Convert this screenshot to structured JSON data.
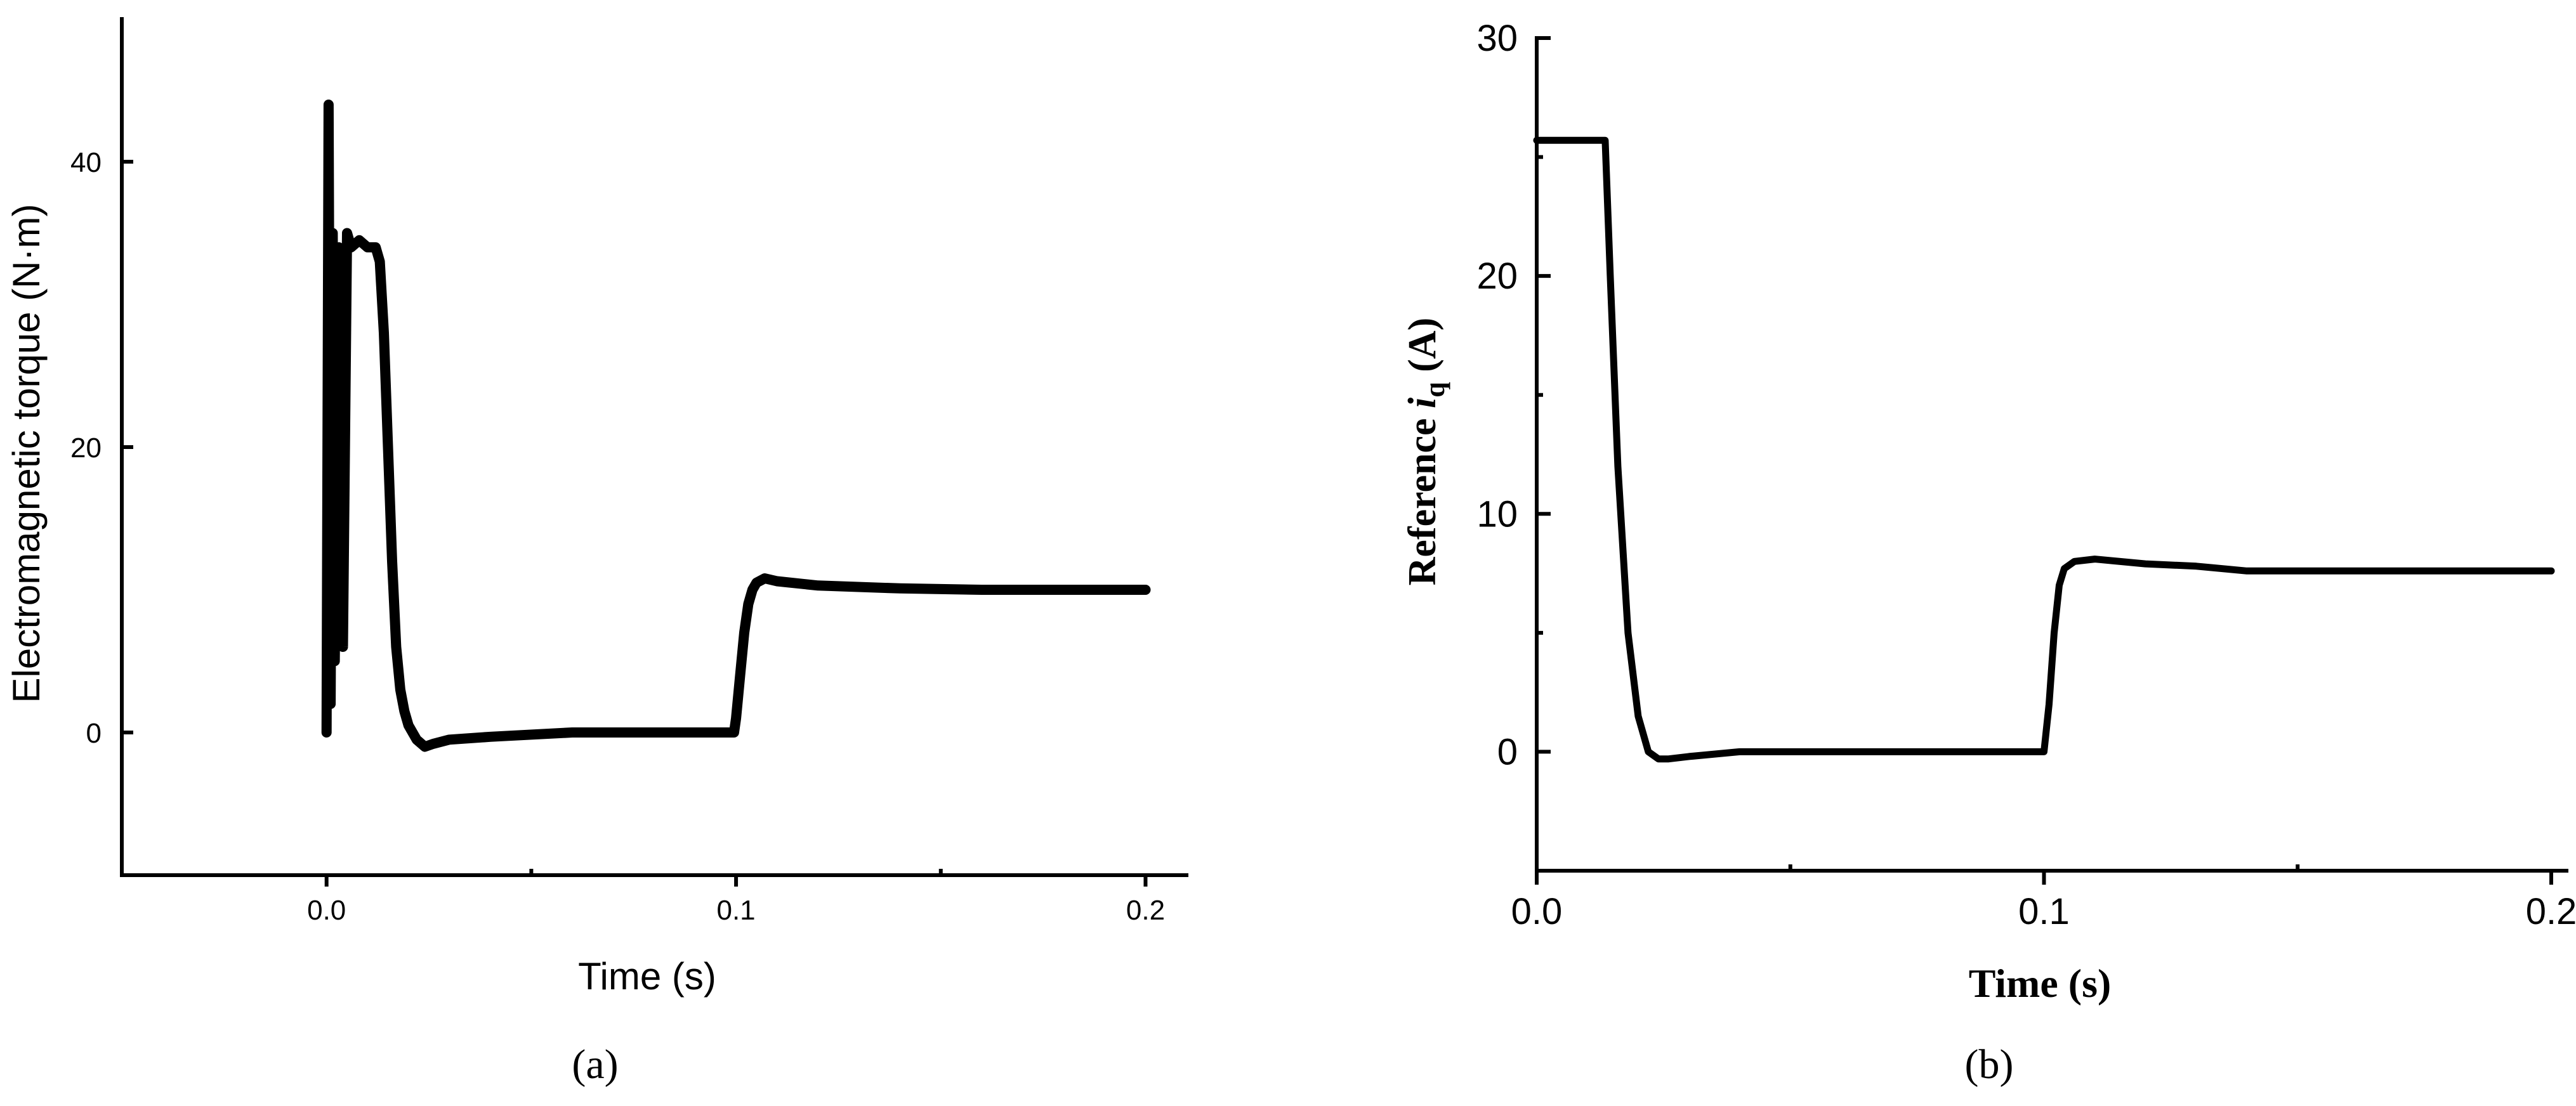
{
  "chart_data": [
    {
      "type": "line",
      "panel_label": "(a)",
      "title": "",
      "xlabel": "Time (s)",
      "ylabel": "Electromagnetic torque (N·m)",
      "xlim": [
        -0.05,
        0.21
      ],
      "ylim": [
        -10,
        50
      ],
      "xticks": [
        {
          "value": 0.0,
          "label": "0.0"
        },
        {
          "value": 0.1,
          "label": "0.1"
        },
        {
          "value": 0.2,
          "label": "0.2"
        }
      ],
      "yticks": [
        {
          "value": 0,
          "label": "0"
        },
        {
          "value": 20,
          "label": "20"
        },
        {
          "value": 40,
          "label": "40"
        }
      ],
      "grid": false,
      "series": [
        {
          "color": "#000000",
          "x": [
            0.0,
            0.0005,
            0.001,
            0.0015,
            0.002,
            0.003,
            0.004,
            0.005,
            0.006,
            0.008,
            0.01,
            0.012,
            0.013,
            0.014,
            0.015,
            0.016,
            0.017,
            0.018,
            0.019,
            0.02,
            0.022,
            0.024,
            0.026,
            0.03,
            0.04,
            0.06,
            0.08,
            0.09,
            0.0995,
            0.1,
            0.101,
            0.102,
            0.103,
            0.104,
            0.105,
            0.107,
            0.11,
            0.12,
            0.14,
            0.16,
            0.18,
            0.2
          ],
          "y": [
            0,
            44,
            2,
            35,
            5,
            34,
            6,
            35,
            34,
            34.5,
            34,
            34,
            33,
            28,
            20,
            12,
            6,
            3,
            1.5,
            0.5,
            -0.5,
            -1,
            -0.8,
            -0.5,
            -0.3,
            0,
            0,
            0,
            0,
            1,
            4,
            7,
            9,
            10,
            10.5,
            10.8,
            10.6,
            10.3,
            10.1,
            10,
            10,
            10
          ]
        }
      ]
    },
    {
      "type": "line",
      "panel_label": "(b)",
      "title": "",
      "xlabel": "Time (s)",
      "ylabel": "Reference iq (A)",
      "ylabel_parts": {
        "prefix": "Reference ",
        "var": "i",
        "sub": "q",
        "suffix": " (A)"
      },
      "xlim": [
        0.0,
        0.203
      ],
      "ylim": [
        -5,
        30
      ],
      "xticks": [
        {
          "value": 0.0,
          "label": "0.0"
        },
        {
          "value": 0.1,
          "label": "0.1"
        },
        {
          "value": 0.2,
          "label": "0.2"
        }
      ],
      "yticks": [
        {
          "value": 0,
          "label": "0"
        },
        {
          "value": 10,
          "label": "10"
        },
        {
          "value": 20,
          "label": "20"
        },
        {
          "value": 30,
          "label": "30"
        }
      ],
      "grid": false,
      "series": [
        {
          "color": "#000000",
          "x": [
            0.0,
            0.0135,
            0.0145,
            0.016,
            0.018,
            0.02,
            0.022,
            0.024,
            0.026,
            0.03,
            0.04,
            0.06,
            0.08,
            0.1,
            0.101,
            0.102,
            0.103,
            0.104,
            0.106,
            0.11,
            0.12,
            0.13,
            0.14,
            0.15,
            0.2
          ],
          "y": [
            25.7,
            25.7,
            20,
            12,
            5,
            1.5,
            0,
            -0.3,
            -0.3,
            -0.2,
            0,
            0,
            0,
            0,
            2,
            5,
            7,
            7.7,
            8,
            8.1,
            7.9,
            7.8,
            7.6,
            7.6,
            7.6
          ]
        }
      ]
    }
  ]
}
